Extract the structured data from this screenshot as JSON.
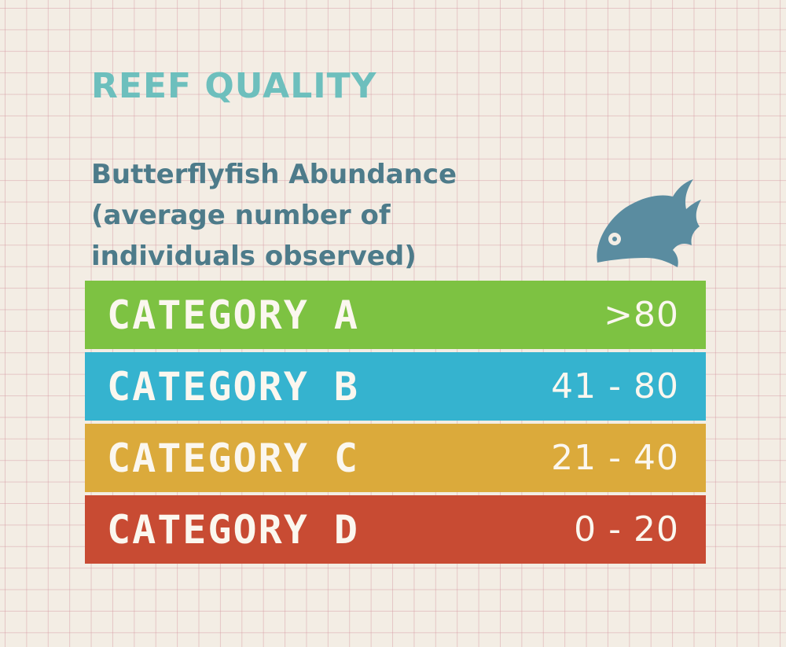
{
  "title": "REEF QUALITY",
  "subtitle": {
    "lines": [
      "Butterflyfish Abundance",
      "(average number of",
      "individuals observed)"
    ]
  },
  "icon": "fish-icon",
  "colors": {
    "title": "#6dbfbd",
    "subtitle": "#4d7b8a",
    "fish": "#5a8ca0",
    "category_a": "#7dc242",
    "category_b": "#35b3cf",
    "category_c": "#dbaa3b",
    "category_d": "#c84b33"
  },
  "categories": [
    {
      "label": "CATEGORY A",
      "range": ">80"
    },
    {
      "label": "CATEGORY B",
      "range": "41 - 80"
    },
    {
      "label": "CATEGORY C",
      "range": "21 - 40"
    },
    {
      "label": "CATEGORY D",
      "range": "0 - 20"
    }
  ]
}
